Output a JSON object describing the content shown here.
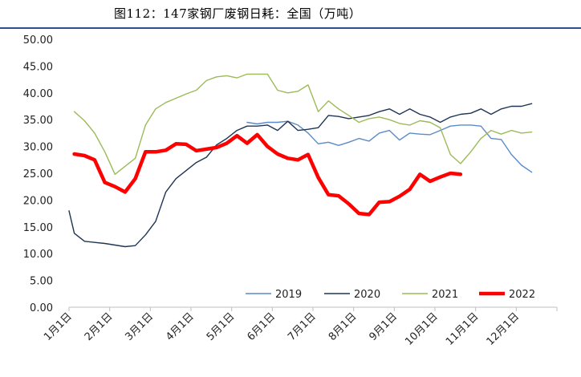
{
  "header": {
    "title": "图112：147家钢厂废钢日耗：全国（万吨）"
  },
  "colors": {
    "2019": "#5b8bc9",
    "2020": "#1f3554",
    "2021": "#9bbb59",
    "2022": "#ff0000",
    "header_rule": "#2e4e8c"
  },
  "chart_data": {
    "type": "line",
    "title": "图112：147家钢厂废钢日耗：全国（万吨）",
    "xlabel": "",
    "ylabel": "",
    "ylim": [
      0,
      50
    ],
    "yticks": [
      "0.00",
      "5.00",
      "10.00",
      "15.00",
      "20.00",
      "25.00",
      "30.00",
      "35.00",
      "40.00",
      "45.00",
      "50.00"
    ],
    "x_ticks": [
      "1月1日",
      "2月1日",
      "3月1日",
      "4月1日",
      "5月1日",
      "6月1日",
      "7月1日",
      "8月1日",
      "9月1日",
      "10月1日",
      "11月1日",
      "12月1日"
    ],
    "grid": false,
    "legend": "bottom-right",
    "series": [
      {
        "name": "2019",
        "x": [
          5.38,
          5.63,
          5.88,
          6.13,
          6.38,
          6.63,
          6.88,
          7.13,
          7.38,
          7.63,
          7.88,
          8.13,
          8.38,
          8.63,
          8.88,
          9.13,
          9.38,
          9.63,
          9.88,
          10.13,
          10.38,
          10.63,
          10.88,
          11.13,
          11.38,
          11.63,
          11.88,
          12.13,
          12.38
        ],
        "values": [
          34.5,
          34.2,
          34.5,
          34.5,
          34.7,
          34.0,
          32.5,
          30.5,
          30.8,
          30.2,
          30.8,
          31.5,
          31.0,
          32.5,
          33.0,
          31.2,
          32.5,
          32.3,
          32.2,
          33.0,
          33.8,
          34.0,
          34.0,
          33.8,
          31.5,
          31.3,
          28.5,
          26.5,
          25.2
        ]
      },
      {
        "name": "2020",
        "x": [
          1.0,
          1.13,
          1.38,
          1.63,
          1.88,
          2.13,
          2.38,
          2.63,
          2.88,
          3.13,
          3.38,
          3.63,
          3.88,
          4.13,
          4.38,
          4.63,
          4.88,
          5.13,
          5.38,
          5.63,
          5.88,
          6.13,
          6.38,
          6.63,
          6.88,
          7.13,
          7.38,
          7.63,
          7.88,
          8.13,
          8.38,
          8.63,
          8.88,
          9.13,
          9.38,
          9.63,
          9.88,
          10.13,
          10.38,
          10.63,
          10.88,
          11.13,
          11.38,
          11.63,
          11.88,
          12.13,
          12.38
        ],
        "values": [
          18.0,
          13.8,
          12.3,
          12.1,
          11.9,
          11.6,
          11.3,
          11.5,
          13.5,
          16.0,
          21.5,
          24.0,
          25.5,
          27.0,
          28.0,
          30.3,
          31.5,
          33.0,
          33.8,
          33.8,
          34.0,
          33.0,
          34.7,
          33.0,
          33.2,
          33.5,
          35.8,
          35.6,
          35.2,
          35.5,
          35.8,
          36.5,
          37.0,
          36.0,
          37.0,
          36.0,
          35.5,
          34.5,
          35.5,
          36.0,
          36.2,
          37.0,
          36.0,
          37.0,
          37.5,
          37.5,
          38.0
        ]
      },
      {
        "name": "2021",
        "x": [
          1.13,
          1.38,
          1.63,
          1.88,
          2.13,
          2.38,
          2.63,
          2.88,
          3.13,
          3.38,
          3.63,
          3.88,
          4.13,
          4.38,
          4.63,
          4.88,
          5.13,
          5.38,
          5.63,
          5.88,
          6.13,
          6.38,
          6.63,
          6.88,
          7.13,
          7.38,
          7.63,
          7.88,
          8.13,
          8.38,
          8.63,
          8.88,
          9.13,
          9.38,
          9.63,
          9.88,
          10.13,
          10.38,
          10.63,
          10.88,
          11.13,
          11.38,
          11.63,
          11.88,
          12.13,
          12.38
        ],
        "values": [
          36.5,
          34.8,
          32.5,
          29.0,
          24.8,
          26.3,
          27.8,
          34.0,
          37.0,
          38.2,
          39.0,
          39.8,
          40.5,
          42.3,
          43.0,
          43.2,
          42.8,
          43.5,
          43.5,
          43.5,
          40.5,
          40.0,
          40.3,
          41.5,
          36.5,
          38.5,
          37.0,
          35.8,
          34.5,
          35.2,
          35.5,
          35.0,
          34.3,
          34.0,
          34.8,
          34.5,
          33.5,
          28.5,
          26.8,
          29.0,
          31.5,
          33.0,
          32.3,
          33.0,
          32.5,
          32.7
        ]
      },
      {
        "name": "2022",
        "x": [
          1.13,
          1.38,
          1.63,
          1.88,
          2.13,
          2.38,
          2.63,
          2.88,
          3.13,
          3.38,
          3.63,
          3.88,
          4.13,
          4.38,
          4.63,
          4.88,
          5.13,
          5.38,
          5.63,
          5.88,
          6.13,
          6.38,
          6.63,
          6.88,
          7.13,
          7.38,
          7.63,
          7.88,
          8.13,
          8.38,
          8.63,
          8.88,
          9.13,
          9.38,
          9.63,
          9.88,
          10.13,
          10.38,
          10.63
        ],
        "values": [
          28.6,
          28.3,
          27.5,
          23.3,
          22.5,
          21.5,
          24.0,
          29.0,
          29.0,
          29.3,
          30.5,
          30.4,
          29.2,
          29.5,
          29.8,
          30.6,
          32.0,
          30.6,
          32.2,
          30.0,
          28.6,
          27.8,
          27.5,
          28.5,
          24.2,
          21.0,
          20.8,
          19.3,
          17.5,
          17.3,
          19.6,
          19.7,
          20.7,
          22.0,
          24.8,
          23.5,
          24.3,
          25.0,
          24.8
        ]
      }
    ]
  }
}
